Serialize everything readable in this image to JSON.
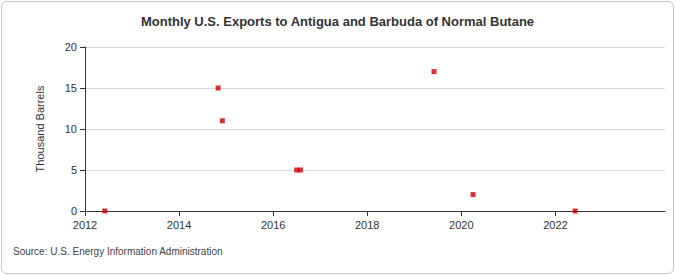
{
  "chart_data": {
    "type": "scatter",
    "title": "Monthly U.S. Exports to Antigua and Barbuda of Normal Butane",
    "y_label": "Thousand Barrels",
    "source": "Source: U.S. Energy Information Administration",
    "x": [
      2012.42,
      2014.83,
      2014.92,
      2016.5,
      2016.58,
      2019.42,
      2020.25,
      2022.42
    ],
    "values": [
      0,
      15,
      11,
      5,
      5,
      17,
      2,
      0
    ],
    "color": "#cc0000",
    "marker": "square",
    "xlim": [
      2012,
      2024.33
    ],
    "xticks": [
      2012,
      2014,
      2016,
      2018,
      2020,
      2022
    ],
    "ylim": [
      0,
      20
    ],
    "yticks": [
      0,
      5,
      10,
      15,
      20
    ],
    "grid": true
  }
}
